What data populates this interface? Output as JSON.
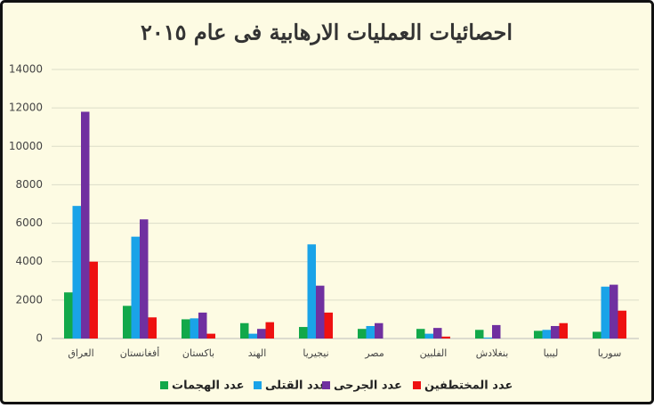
{
  "chart_data": {
    "type": "bar",
    "title": "احصائيات العمليات الارهابية فى عام ٢٠١٥",
    "categories": [
      "العراق",
      "أفغانستان",
      "باكستان",
      "الهند",
      "نيجيريا",
      "مصر",
      "الفلبين",
      "بنغلادش",
      "ليبيا",
      "سوريا"
    ],
    "series": [
      {
        "name": "عدد الهجمات",
        "color": "#12a84a",
        "values": [
          2400,
          1700,
          1000,
          800,
          600,
          500,
          500,
          450,
          400,
          350
        ]
      },
      {
        "name": "عدد القتلى",
        "color": "#1aa3e8",
        "values": [
          6900,
          5300,
          1050,
          250,
          4900,
          650,
          250,
          50,
          450,
          2700
        ]
      },
      {
        "name": "عدد الجرحى",
        "color": "#7030a0",
        "values": [
          11800,
          6200,
          1350,
          500,
          2750,
          800,
          550,
          700,
          650,
          2800
        ]
      },
      {
        "name": "عدد المختطفين",
        "color": "#ee1111",
        "values": [
          4000,
          1100,
          250,
          850,
          1350,
          0,
          100,
          0,
          800,
          1450
        ]
      }
    ],
    "ylim": [
      0,
      14000
    ],
    "yticks": [
      0,
      2000,
      4000,
      6000,
      8000,
      10000,
      12000,
      14000
    ],
    "grid": true,
    "legend": "bottom"
  }
}
